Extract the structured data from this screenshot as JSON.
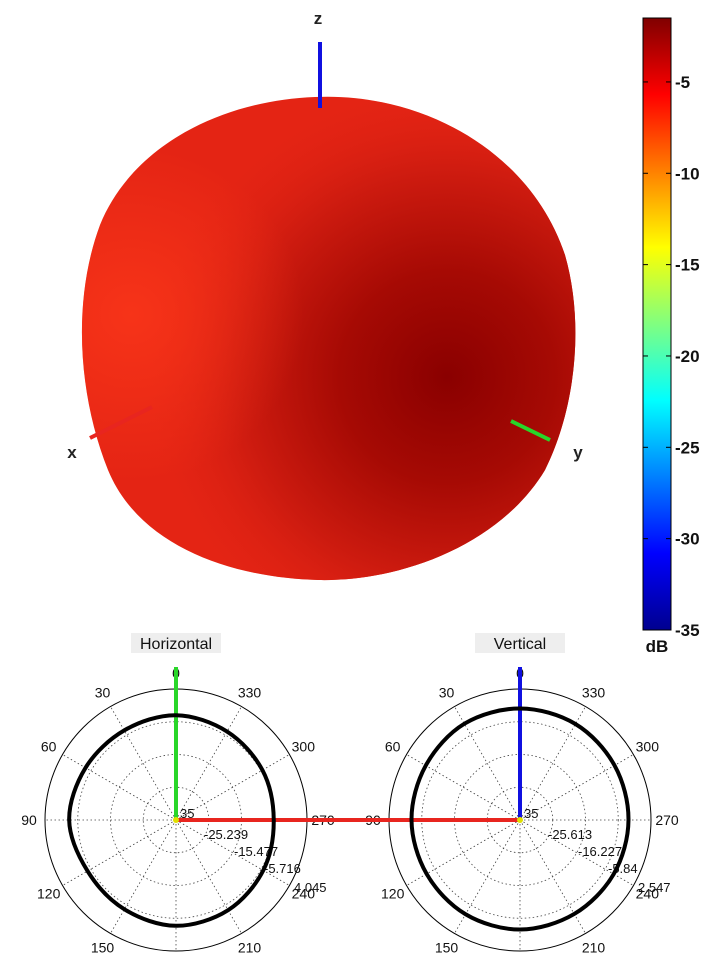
{
  "pattern_3d": {
    "axis_labels": {
      "x": "x",
      "y": "y",
      "z": "z"
    }
  },
  "colorbar": {
    "unit": "dB",
    "range": [
      -35,
      -1.5
    ],
    "ticks": [
      "-5",
      "-10",
      "-15",
      "-20",
      "-25",
      "-30",
      "-35"
    ],
    "colormap": "jet",
    "colors": [
      "#00008f",
      "#0000ff",
      "#00ffff",
      "#ffff00",
      "#ff0000",
      "#800000"
    ]
  },
  "colors": {
    "x_axis": "#e8251f",
    "y_axis": "#29d629",
    "z_axis": "#1010e0",
    "pattern_body": "#e42414",
    "pattern_dark": "#8e0000"
  },
  "chart_data": [
    {
      "type": "polar",
      "title": "Horizontal",
      "angle_labels": [
        "0",
        "330",
        "300",
        "270",
        "240",
        "210",
        "180",
        "150",
        "120",
        "90",
        "60",
        "30"
      ],
      "radial_labels": [
        "35",
        "-25.239",
        "-15.477",
        "-5.716",
        "4.045"
      ],
      "series": [
        {
          "theta_deg": [
            0,
            30,
            60,
            90,
            120,
            150,
            180,
            210,
            240,
            270,
            300,
            330
          ],
          "r_db": [
            -3.8,
            -4.2,
            -3.9,
            -3.2,
            -4.6,
            -4.3,
            -3.5,
            -4.0,
            -5.0,
            -5.9,
            -5.3,
            -4.6
          ]
        }
      ]
    },
    {
      "type": "polar",
      "title": "Vertical",
      "angle_labels": [
        "0",
        "330",
        "300",
        "270",
        "240",
        "210",
        "180",
        "150",
        "120",
        "90",
        "60",
        "30"
      ],
      "radial_labels": [
        "35",
        "-25.613",
        "-16.227",
        "-5.84",
        "2.547"
      ],
      "series": [
        {
          "theta_deg": [
            0,
            30,
            60,
            90,
            120,
            150,
            180,
            210,
            240,
            270,
            300,
            330
          ],
          "r_db": [
            -1.8,
            -1.9,
            -2.6,
            -2.7,
            -2.9,
            -2.6,
            -2.4,
            -2.7,
            -2.8,
            -2.7,
            -2.5,
            -2.0
          ]
        }
      ]
    }
  ]
}
